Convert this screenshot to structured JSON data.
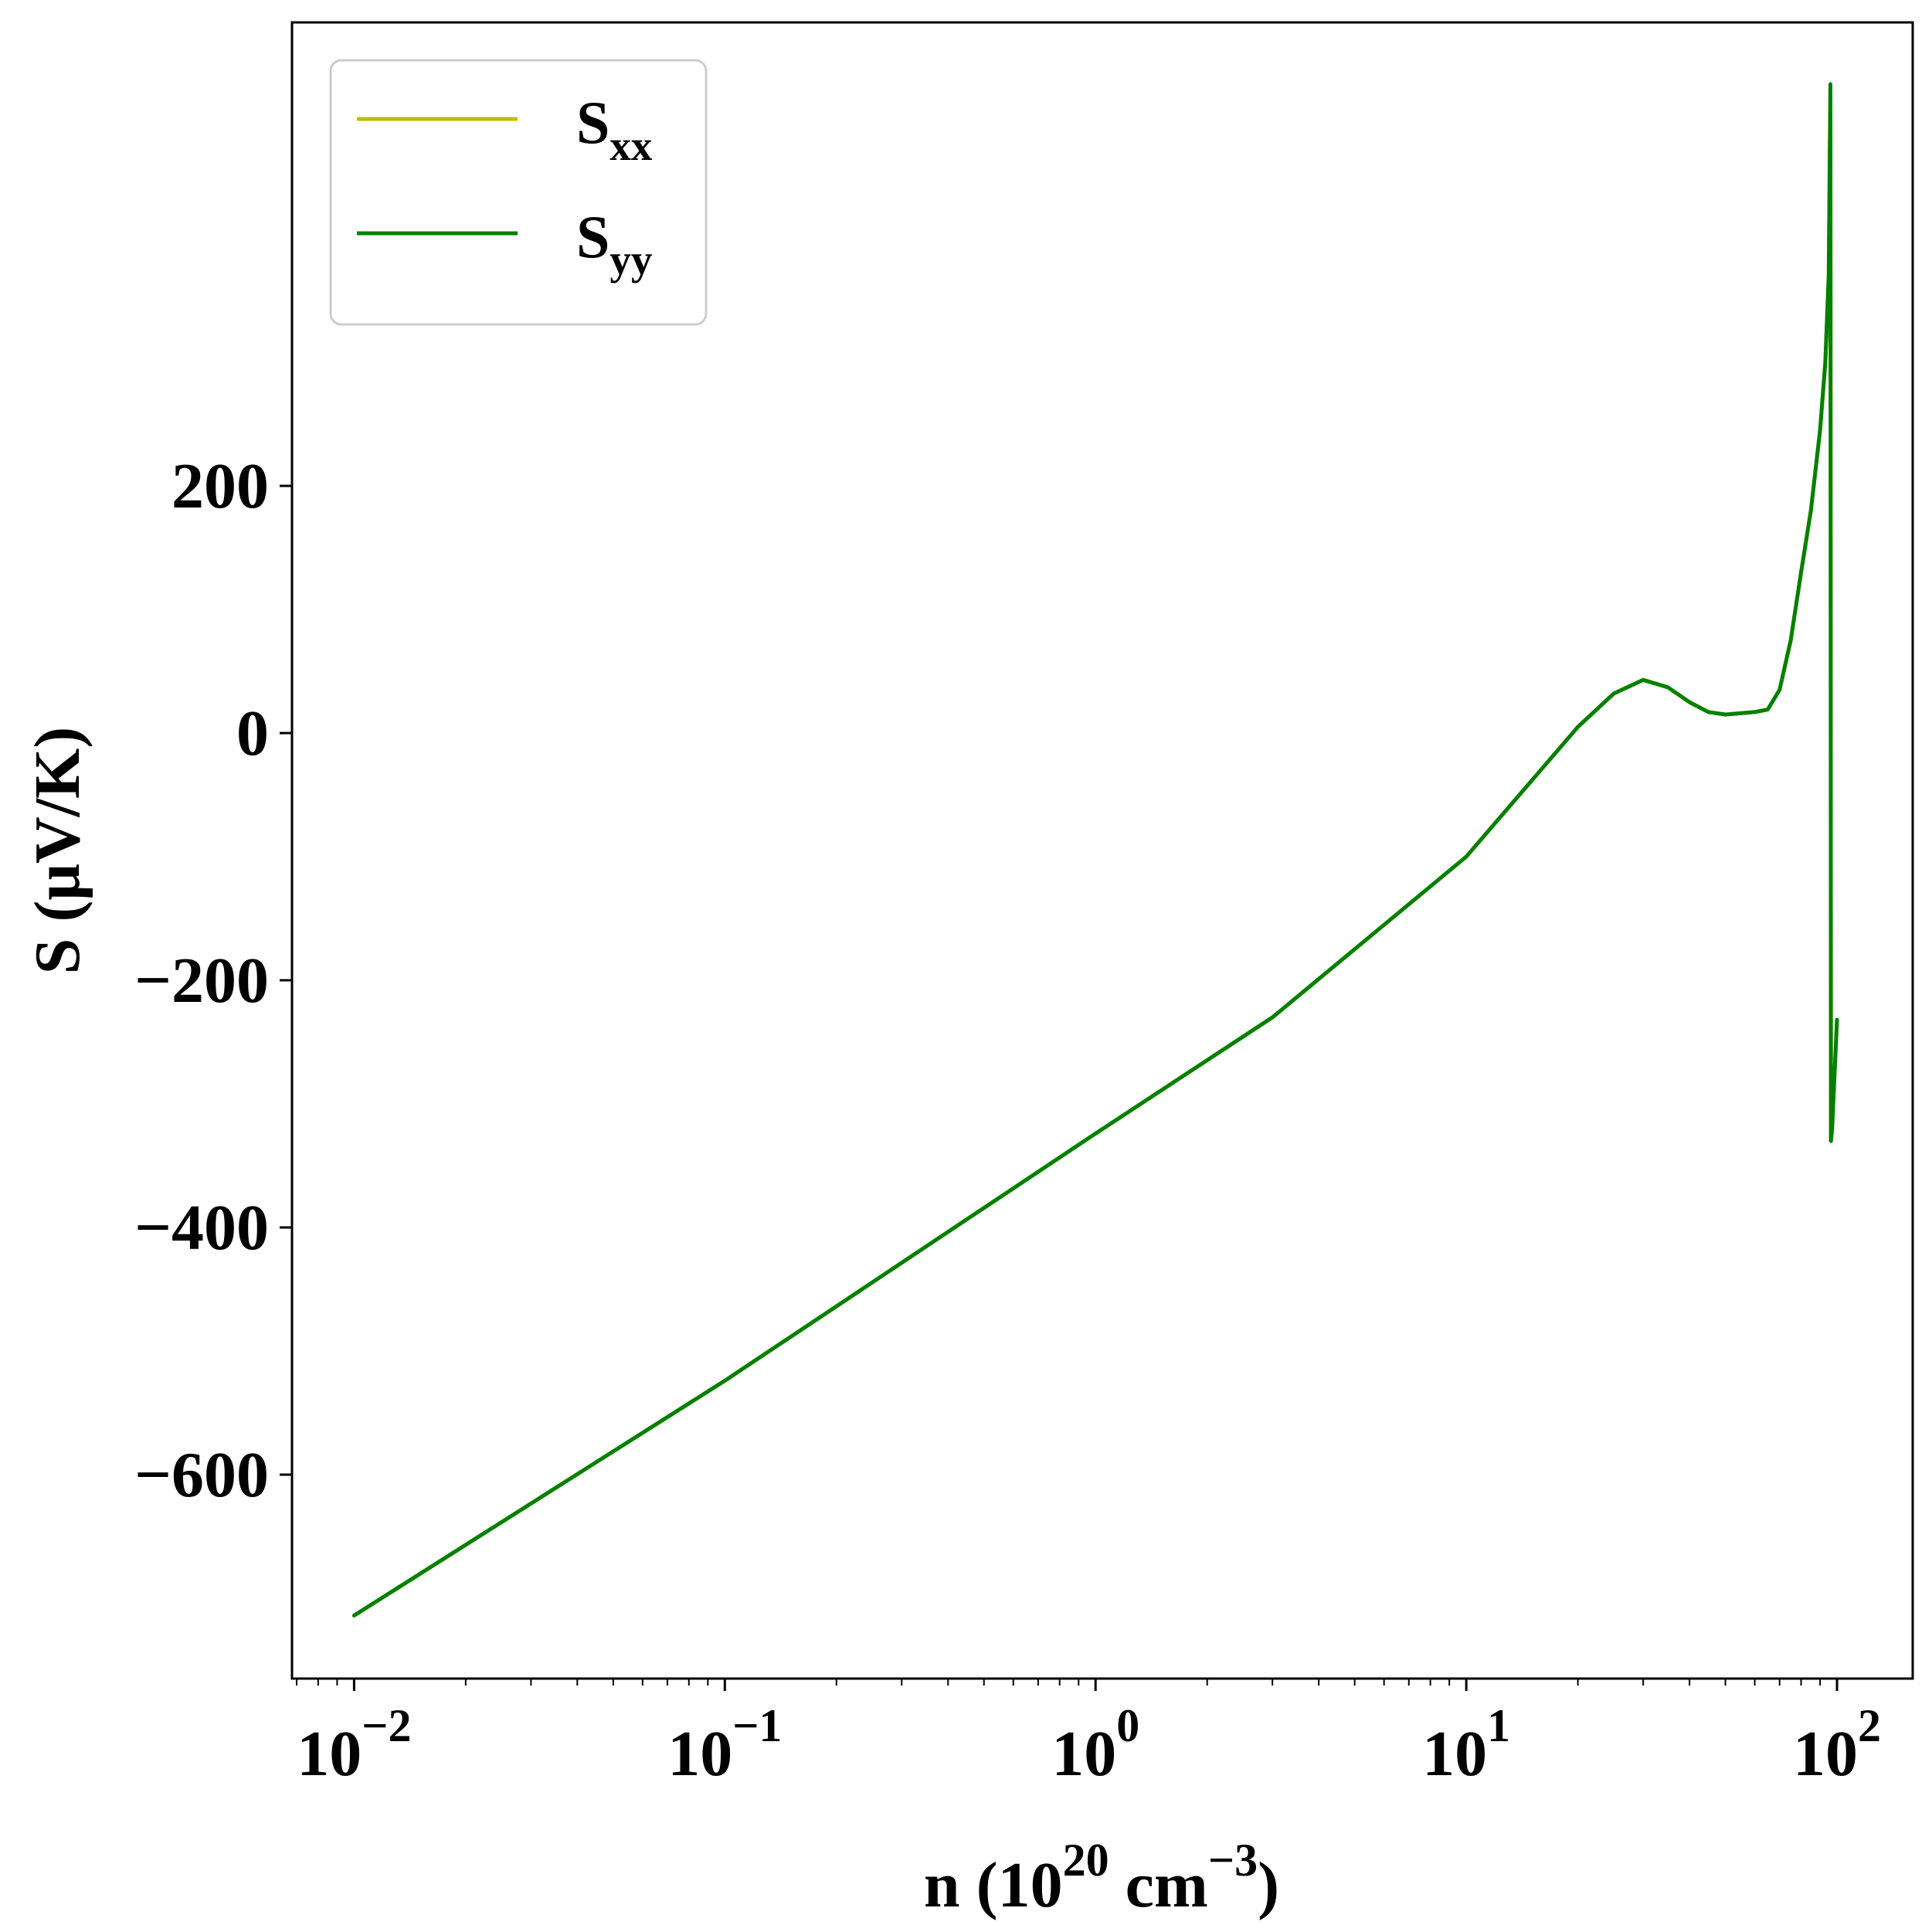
{
  "chart_data": {
    "type": "line",
    "xscale": "log",
    "xlim": [
      0.0068,
      160
    ],
    "ylim": [
      -765,
      575
    ],
    "grid": false,
    "legend_position": "top-left",
    "xlabel": {
      "main": "n (10",
      "sup1": "20",
      "mid": " cm",
      "sup2": "−3",
      "end": ")"
    },
    "ylabel": "S (μV/K)",
    "xticks": [
      {
        "value": 0.01,
        "base": "10",
        "exp": "−2"
      },
      {
        "value": 0.1,
        "base": "10",
        "exp": "−1"
      },
      {
        "value": 1,
        "base": "10",
        "exp": "0"
      },
      {
        "value": 10,
        "base": "10",
        "exp": "1"
      },
      {
        "value": 100,
        "base": "10",
        "exp": "2"
      }
    ],
    "yticks": [
      {
        "value": -600,
        "label": "−600"
      },
      {
        "value": -400,
        "label": "−400"
      },
      {
        "value": -200,
        "label": "−200"
      },
      {
        "value": 0,
        "label": "0"
      },
      {
        "value": 200,
        "label": "200"
      }
    ],
    "series": [
      {
        "name": "S",
        "subscript": "xx",
        "color": "#bfbf00",
        "x": [
          0.01,
          0.1,
          1,
          3,
          10,
          20,
          25,
          30,
          35,
          40,
          45,
          50,
          60,
          65,
          70,
          75,
          80,
          85,
          90,
          93,
          95,
          96,
          96.3,
          97,
          100
        ],
        "y": [
          -714,
          -524,
          -324,
          -230,
          -100,
          5,
          32,
          43,
          37,
          25,
          17,
          15,
          17,
          19,
          35,
          75,
          130,
          180,
          245,
          300,
          370,
          525,
          -330,
          -320,
          -232
        ]
      },
      {
        "name": "S",
        "subscript": "yy",
        "color": "#008000",
        "x": [
          0.01,
          0.1,
          1,
          3,
          10,
          20,
          25,
          30,
          35,
          40,
          45,
          50,
          60,
          65,
          70,
          75,
          80,
          85,
          90,
          93,
          95,
          96,
          96.3,
          97,
          100
        ],
        "y": [
          -714,
          -524,
          -324,
          -230,
          -100,
          5,
          32,
          43,
          37,
          25,
          17,
          15,
          17,
          19,
          35,
          75,
          130,
          180,
          245,
          300,
          370,
          525,
          -330,
          -320,
          -232
        ]
      }
    ]
  }
}
